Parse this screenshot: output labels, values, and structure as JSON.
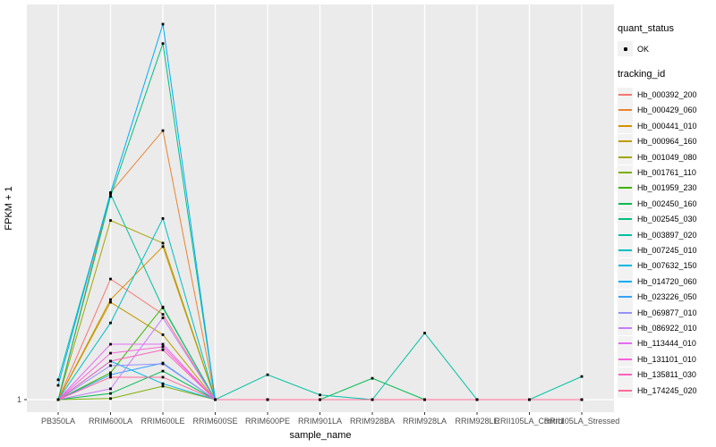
{
  "figure": {
    "panel_bg": "#EBEBEB",
    "grid_color": "#FFFFFF",
    "axis_text_color": "#4D4D4D",
    "point_color": "#000000",
    "y_axis_title": "FPKM + 1",
    "x_axis_title": "sample_name",
    "y_tick_label": "1"
  },
  "legend": {
    "quant_status_title": "quant_status",
    "quant_ok_label": "OK",
    "tracking_id_title": "tracking_id"
  },
  "chart_data": {
    "type": "line",
    "title": "",
    "xlabel": "sample_name",
    "ylabel": "FPKM + 1",
    "y_scale": "log10",
    "y_ticks": [
      1
    ],
    "ylim": [
      0.85,
      1100
    ],
    "grid": true,
    "legend_position": "right",
    "marker": "black-point-all-vertices",
    "categories": [
      "PB350LA",
      "RRIM600LA",
      "RRIM600LE",
      "RRIM600SE",
      "RRIM600PE",
      "RRIM901LA",
      "RRIM928BA",
      "RRIM928LA",
      "RRIM928LE",
      "RRII105LA_Control",
      "RRII105LA_Stressed"
    ],
    "series": [
      {
        "name": "Hb_000392_200",
        "color": "#F8766D",
        "values": [
          1,
          9.2,
          4.8,
          1,
          1,
          1,
          1,
          1,
          1,
          1,
          1
        ]
      },
      {
        "name": "Hb_000429_060",
        "color": "#EA8331",
        "values": [
          1,
          45,
          141,
          1,
          1,
          1,
          1,
          1,
          1,
          1,
          1
        ]
      },
      {
        "name": "Hb_000441_010",
        "color": "#D89000",
        "values": [
          1,
          6.3,
          16.7,
          1,
          1,
          1,
          1,
          1,
          1,
          1,
          1
        ]
      },
      {
        "name": "Hb_000964_160",
        "color": "#C09B00",
        "values": [
          1,
          6.0,
          3.3,
          1,
          1,
          1,
          1,
          1,
          1,
          1,
          1
        ]
      },
      {
        "name": "Hb_001049_080",
        "color": "#A3A500",
        "values": [
          1,
          27,
          17.8,
          1,
          1,
          1,
          1,
          1,
          1,
          1,
          1
        ]
      },
      {
        "name": "Hb_001761_110",
        "color": "#7CAE00",
        "values": [
          1,
          1.02,
          1.28,
          1,
          1,
          1,
          1,
          1,
          1,
          1,
          1
        ]
      },
      {
        "name": "Hb_001959_230",
        "color": "#39B600",
        "values": [
          1,
          1.64,
          5.5,
          1,
          1,
          1,
          1,
          1,
          1,
          1,
          1
        ]
      },
      {
        "name": "Hb_002450_160",
        "color": "#00BB4E",
        "values": [
          1,
          1.12,
          1.69,
          1,
          1,
          1,
          1.48,
          1,
          1,
          1,
          1
        ]
      },
      {
        "name": "Hb_002545_030",
        "color": "#00BF7D",
        "values": [
          1,
          42,
          700,
          1,
          1,
          1,
          1,
          1,
          1,
          1,
          1
        ]
      },
      {
        "name": "Hb_003897_020",
        "color": "#00C1A3",
        "values": [
          1.44,
          44,
          5.4,
          1,
          1.58,
          1.09,
          1,
          3.4,
          1,
          1,
          1.53
        ]
      },
      {
        "name": "Hb_007245_010",
        "color": "#00BFC4",
        "values": [
          1,
          4.1,
          28,
          1,
          1,
          1,
          1,
          1,
          1,
          1,
          1
        ]
      },
      {
        "name": "Hb_007632_150",
        "color": "#00B9E3",
        "values": [
          1,
          2.03,
          1.34,
          1,
          1,
          1,
          1,
          1,
          1,
          1,
          1
        ]
      },
      {
        "name": "Hb_014720_060",
        "color": "#00ADFA",
        "values": [
          1.3,
          45,
          1000,
          1,
          1,
          1,
          1,
          1,
          1,
          1,
          1
        ]
      },
      {
        "name": "Hb_023226_050",
        "color": "#35A2FF",
        "values": [
          1,
          1.58,
          1.96,
          1,
          1,
          1,
          1,
          1,
          1,
          1,
          1
        ]
      },
      {
        "name": "Hb_069877_010",
        "color": "#9590FF",
        "values": [
          1,
          1.87,
          1.93,
          1,
          1,
          1,
          1,
          1,
          1,
          1,
          1
        ]
      },
      {
        "name": "Hb_086922_010",
        "color": "#C77CFF",
        "values": [
          1,
          1.22,
          4.5,
          1,
          1,
          1,
          1,
          1,
          1,
          1,
          1
        ]
      },
      {
        "name": "Hb_113444_010",
        "color": "#E76BF3",
        "values": [
          1,
          2.77,
          2.77,
          1,
          1,
          1,
          1,
          1,
          1,
          1,
          1
        ]
      },
      {
        "name": "Hb_131101_010",
        "color": "#FA62DB",
        "values": [
          1,
          2.35,
          2.64,
          1,
          1,
          1,
          1,
          1,
          1,
          1,
          1
        ]
      },
      {
        "name": "Hb_135811_030",
        "color": "#FF62BC",
        "values": [
          1,
          2.03,
          2.5,
          1,
          1,
          1,
          1,
          1,
          1,
          1,
          1
        ]
      },
      {
        "name": "Hb_174245_020",
        "color": "#FF6A98",
        "values": [
          1,
          1.51,
          1.51,
          1,
          1,
          1,
          1,
          1,
          1,
          1,
          1
        ]
      }
    ]
  }
}
